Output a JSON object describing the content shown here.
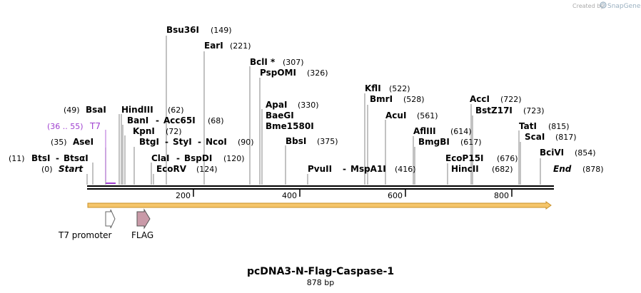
{
  "credit": {
    "prefix": "Created by",
    "brand": "SnapGene"
  },
  "map": {
    "title": "pcDNA3-N-Flag-Caspase-1",
    "length_label": "878 bp",
    "length_bp": 878,
    "ticks": [
      "200",
      "400",
      "600",
      "800"
    ]
  },
  "labels": {
    "bsu36i": "Bsu36I",
    "bsu36i_pos": "(149)",
    "eari": "EarI",
    "eari_pos": "(221)",
    "bcli": "BclI *",
    "bcli_pos": "(307)",
    "pspomi": "PspOMI",
    "pspomi_pos": "(326)",
    "apai": "ApaI",
    "apai_pos": "(330)",
    "baegi": "BaeGI",
    "bme1580i": "Bme1580I",
    "bbsi": "BbsI",
    "bbsi_pos": "(375)",
    "kfli": "KflI",
    "kfli_pos": "(522)",
    "bmri": "BmrI",
    "bmri_pos": "(528)",
    "acui": "AcuI",
    "acui_pos": "(561)",
    "afliii": "AflIII",
    "afliii_pos": "(614)",
    "bmgbi": "BmgBI",
    "bmgbi_pos": "(617)",
    "acci": "AccI",
    "acci_pos": "(722)",
    "bstz17i": "BstZ17I",
    "bstz17i_pos": "(723)",
    "tati": "TatI",
    "tati_pos": "(815)",
    "scai": "ScaI",
    "scai_pos": "(817)",
    "bcivi": "BciVI",
    "bcivi_pos": "(854)",
    "ecop15i": "EcoP15I",
    "ecop15i_pos": "(676)",
    "hincii": "HincII",
    "hincii_pos": "(682)",
    "end": "End",
    "end_pos": "(878)",
    "pvuii": "PvuII",
    "dash1": "-",
    "mspa1i": "MspA1I",
    "mspa1i_pos": "(416)",
    "bsai_pos": "(49)",
    "bsai": "BsaI",
    "hindiii": "HindIII",
    "hindiii_pos": "(62)",
    "bani": "BanI",
    "dash2": "-",
    "acc65i": "Acc65I",
    "acc65i_pos": "(68)",
    "kpni": "KpnI",
    "kpni_pos": "(72)",
    "btgi": "BtgI",
    "dash3": "-",
    "styi": "StyI",
    "dash4": "-",
    "ncoi": "NcoI",
    "ncoi_pos": "(90)",
    "clai": "ClaI",
    "dash5": "-",
    "bspdi": "BspDI",
    "bspdi_pos": "(120)",
    "ecorv": "EcoRV",
    "ecorv_pos": "(124)",
    "t7_range": "(36 .. 55)",
    "t7": "T7",
    "asei_pos": "(35)",
    "asei": "AseI",
    "btsi_pos": "(11)",
    "btsi": "BtsI",
    "dash6": "-",
    "btsai": "BtsαI",
    "start_pos": "(0)",
    "start": "Start"
  },
  "features": [
    {
      "name": "T7 promoter"
    },
    {
      "name": "FLAG"
    }
  ],
  "colors": {
    "orf_fill": "#f5c56a",
    "orf_stroke": "#c8902a",
    "flag_fill": "#c99aa8",
    "primer": "#a040d0"
  }
}
